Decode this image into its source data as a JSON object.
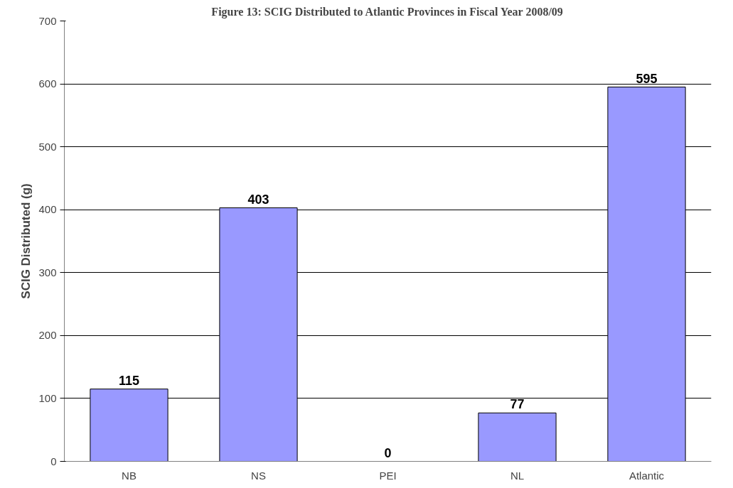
{
  "chart_data": {
    "type": "bar",
    "title": "Figure 13: SCIG Distributed to Atlantic Provinces in Fiscal Year 2008/09",
    "ylabel": "SCIG Distributed (g)",
    "categories": [
      "NB",
      "NS",
      "PEI",
      "NL",
      "Atlantic"
    ],
    "values": [
      115,
      403,
      0,
      77,
      595
    ],
    "color": "#9999ff",
    "ylim": [
      0,
      700
    ],
    "yticks": [
      0,
      100,
      200,
      300,
      400,
      500,
      600,
      700
    ],
    "grid": "y",
    "data_labels": true
  }
}
